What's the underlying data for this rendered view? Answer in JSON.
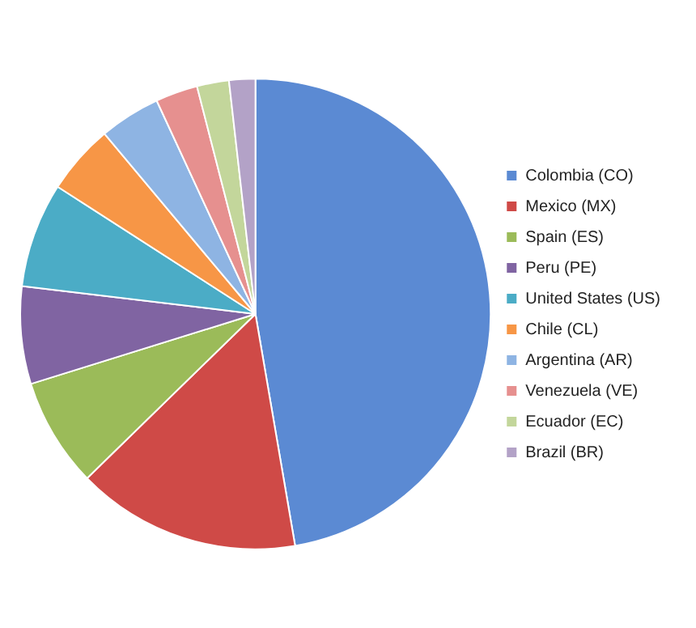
{
  "chart_data": {
    "type": "pie",
    "categories": [
      "Colombia (CO)",
      "Mexico (MX)",
      "Spain (ES)",
      "Peru (PE)",
      "United States (US)",
      "Chile (CL)",
      "Argentina (AR)",
      "Venezuela (VE)",
      "Ecuador (EC)",
      "Brazil (BR)"
    ],
    "values": [
      47.3,
      15.4,
      7.5,
      6.7,
      7.2,
      4.8,
      4.2,
      2.9,
      2.2,
      1.8
    ],
    "colors": [
      "#5b8ad3",
      "#cf4a47",
      "#9bbb59",
      "#8064a2",
      "#4bacc6",
      "#f79646",
      "#8eb4e3",
      "#e6908f",
      "#c3d69b",
      "#b3a2c7"
    ],
    "legend": "right"
  }
}
